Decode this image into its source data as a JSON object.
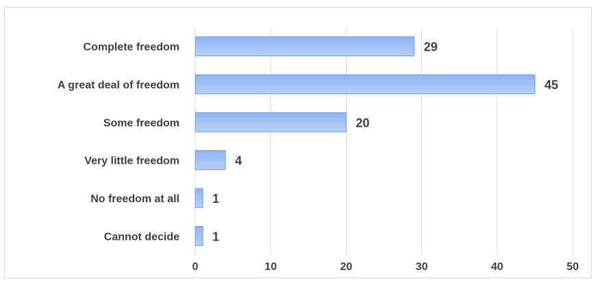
{
  "chart_data": {
    "type": "bar",
    "orientation": "horizontal",
    "title": "",
    "xlabel": "",
    "ylabel": "",
    "categories": [
      "Complete freedom",
      "A great deal of freedom",
      "Some freedom",
      "Very little freedom",
      "No freedom at all",
      "Cannot decide"
    ],
    "values": [
      29,
      45,
      20,
      4,
      1,
      1
    ],
    "data_labels": [
      "29",
      "45",
      "20",
      "4",
      "1",
      "1"
    ],
    "xlim": [
      0,
      50
    ],
    "x_ticks": [
      0,
      10,
      20,
      30,
      40,
      50
    ],
    "x_tick_labels": [
      "0",
      "10",
      "20",
      "30",
      "40",
      "50"
    ],
    "grid": "vertical",
    "legend": "none",
    "colors": {
      "bar_top": "#8fb5f2",
      "bar_bottom": "#b7cff7",
      "bar_edge": "#6f9be6",
      "grid": "#d9d9d9",
      "text": "#404040"
    }
  }
}
